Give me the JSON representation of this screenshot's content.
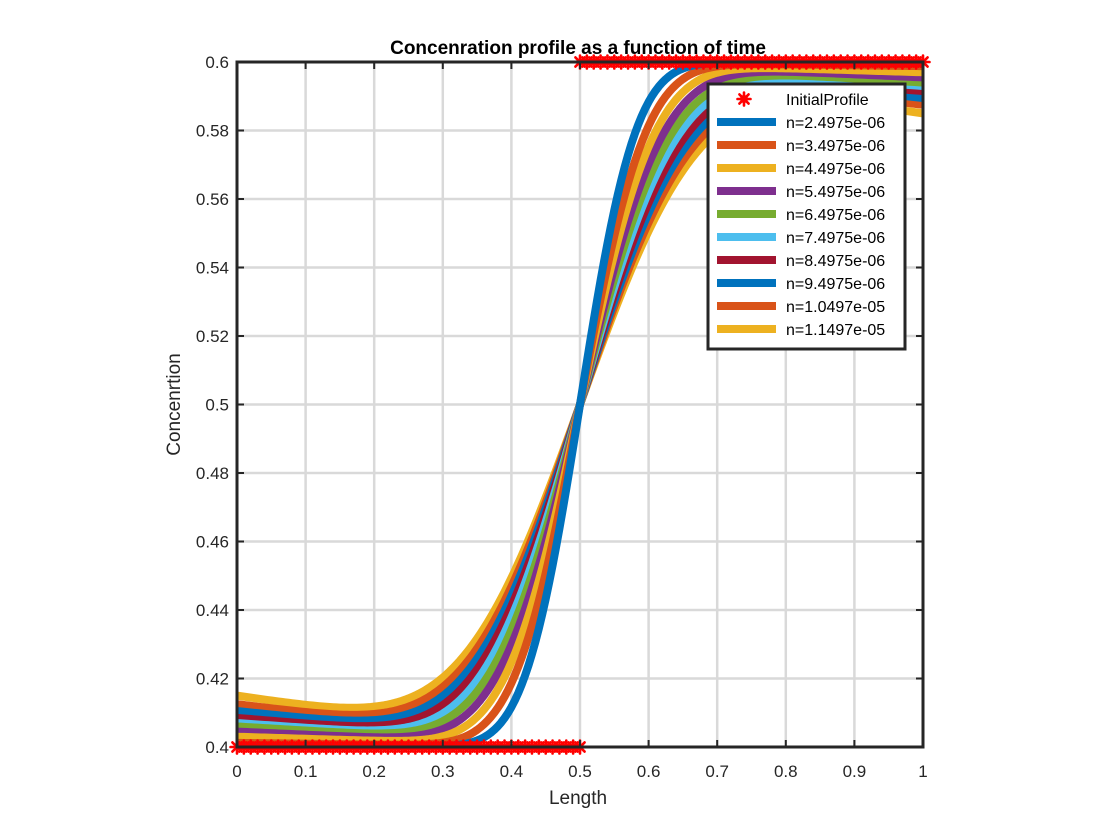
{
  "chart_data": {
    "type": "line",
    "title": "Concenration profile as a function of time",
    "xlabel": "Length",
    "ylabel": "Concenrtion",
    "xlim": [
      0,
      1
    ],
    "ylim": [
      0.4,
      0.6
    ],
    "xticks": [
      "0",
      "0.1",
      "0.2",
      "0.3",
      "0.4",
      "0.5",
      "0.6",
      "0.7",
      "0.8",
      "0.9",
      "1"
    ],
    "yticks": [
      "0.4",
      "0.42",
      "0.44",
      "0.46",
      "0.48",
      "0.5",
      "0.52",
      "0.54",
      "0.56",
      "0.58",
      "0.6"
    ],
    "grid": true,
    "legend_position": "top-right",
    "initial_profile": {
      "name": "InitialProfile",
      "color": "#ff0000",
      "marker": "asterisk",
      "segments": [
        {
          "x": [
            0,
            0.5
          ],
          "y": 0.4
        },
        {
          "x": [
            0.5,
            1
          ],
          "y": 0.6
        }
      ]
    },
    "series": [
      {
        "name": "n=2.4975e-06",
        "color": "#0072BD",
        "sigma": 0.09,
        "y_at_0": 0.4002,
        "y_at_1": 0.5998
      },
      {
        "name": "n=3.4975e-06",
        "color": "#D95319",
        "sigma": 0.1065,
        "y_at_0": 0.4012,
        "y_at_1": 0.5988
      },
      {
        "name": "n=4.4975e-06",
        "color": "#EDB120",
        "sigma": 0.1208,
        "y_at_0": 0.403,
        "y_at_1": 0.597
      },
      {
        "name": "n=5.4975e-06",
        "color": "#7E2F8E",
        "sigma": 0.1335,
        "y_at_0": 0.4045,
        "y_at_1": 0.5955
      },
      {
        "name": "n=6.4975e-06",
        "color": "#77AC30",
        "sigma": 0.1452,
        "y_at_0": 0.406,
        "y_at_1": 0.594
      },
      {
        "name": "n=7.4975e-06",
        "color": "#4DBEEE",
        "sigma": 0.156,
        "y_at_0": 0.407,
        "y_at_1": 0.593
      },
      {
        "name": "n=8.4975e-06",
        "color": "#A2142F",
        "sigma": 0.166,
        "y_at_0": 0.4085,
        "y_at_1": 0.5915
      },
      {
        "name": "n=9.4975e-06",
        "color": "#0072BD",
        "sigma": 0.1755,
        "y_at_0": 0.4105,
        "y_at_1": 0.5895
      },
      {
        "name": "n=1.0497e-05",
        "color": "#D95319",
        "sigma": 0.1845,
        "y_at_0": 0.4125,
        "y_at_1": 0.5875
      },
      {
        "name": "n=1.1497e-05",
        "color": "#EDB120",
        "sigma": 0.193,
        "y_at_0": 0.415,
        "y_at_1": 0.585
      }
    ]
  }
}
